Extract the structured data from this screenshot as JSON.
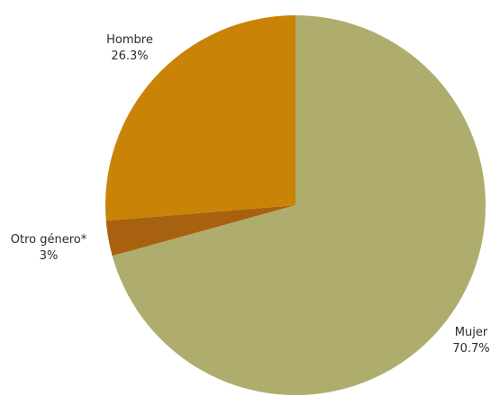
{
  "chart_data": {
    "type": "pie",
    "title": "",
    "slices": [
      {
        "key": "mujer",
        "label": "Mujer",
        "value": 70.7,
        "value_text": "70.7%",
        "color": "#afad6e"
      },
      {
        "key": "otro",
        "label": "Otro género*",
        "value": 3.0,
        "value_text": "3%",
        "color": "#a8620f"
      },
      {
        "key": "hombre",
        "label": "Hombre",
        "value": 26.3,
        "value_text": "26.3%",
        "color": "#c98307"
      }
    ],
    "start": "12 o'clock",
    "direction": "clockwise",
    "legend": "none"
  }
}
